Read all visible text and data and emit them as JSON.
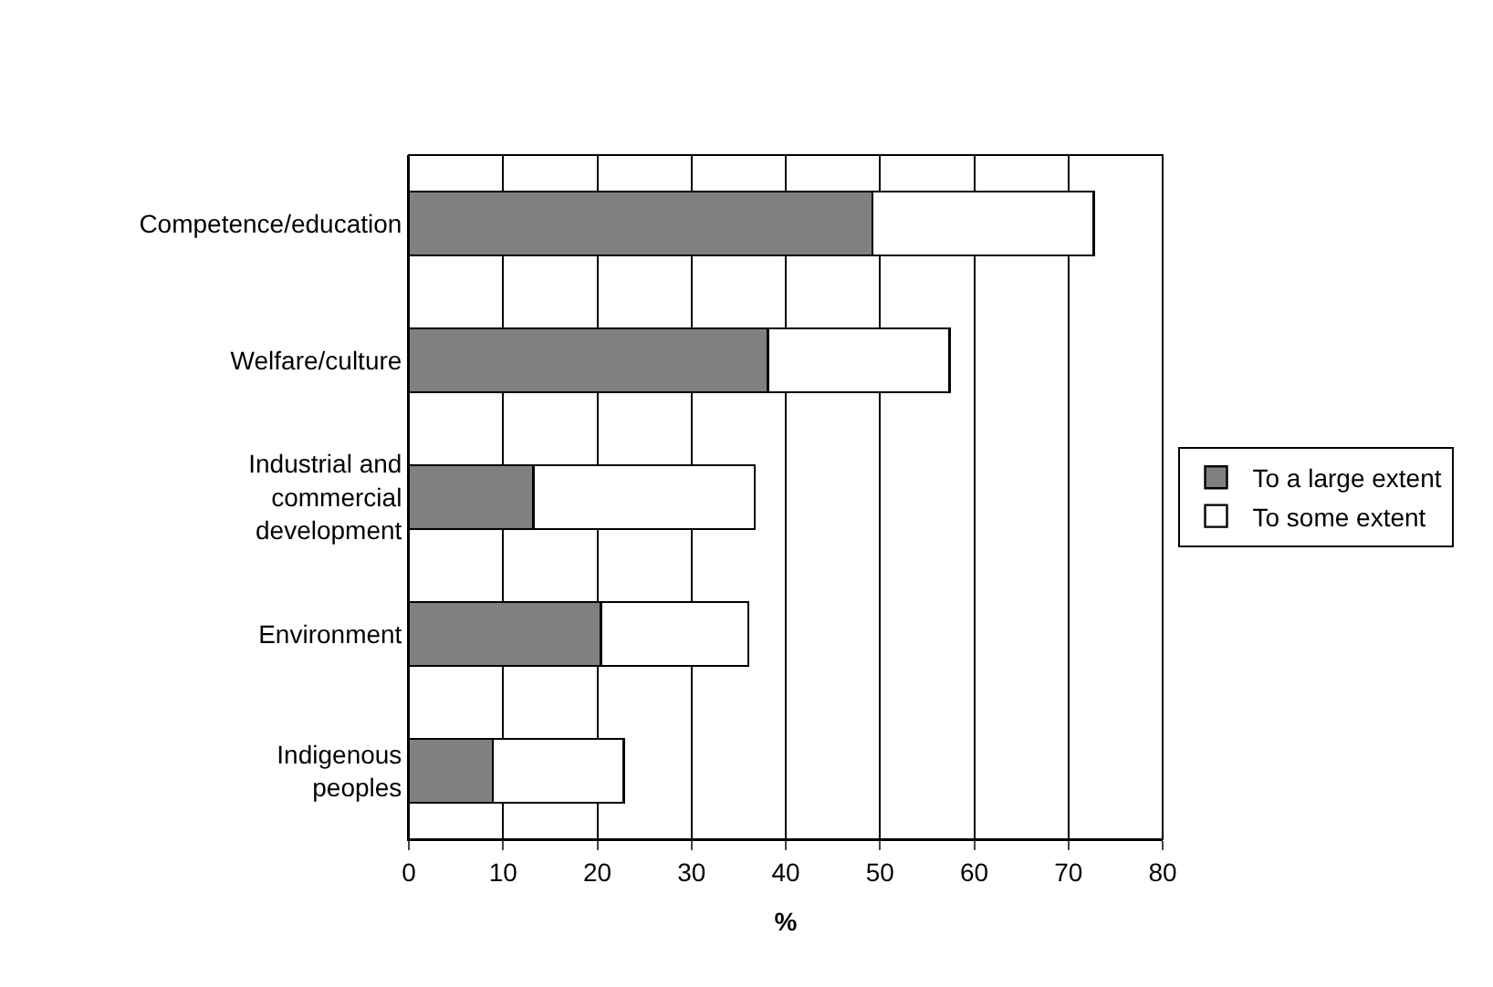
{
  "chart_data": {
    "type": "bar",
    "orientation": "horizontal",
    "stacked": true,
    "xlabel": "%",
    "categories": [
      "Competence/education",
      "Welfare/culture",
      "Industrial and commercial development",
      "Environment",
      "Indigenous peoples"
    ],
    "series": [
      {
        "name": "To a large extent",
        "color": "#808080",
        "values": [
          49.2,
          38.1,
          13.2,
          20.4,
          8.9
        ]
      },
      {
        "name": "To some extent",
        "color": "#ffffff",
        "values": [
          23.5,
          19.3,
          23.5,
          15.6,
          13.9
        ]
      }
    ],
    "xlim": [
      0,
      80
    ],
    "xticks": [
      0,
      10,
      20,
      30,
      40,
      50,
      60,
      70,
      80
    ],
    "grid": "x",
    "legend": "right"
  }
}
